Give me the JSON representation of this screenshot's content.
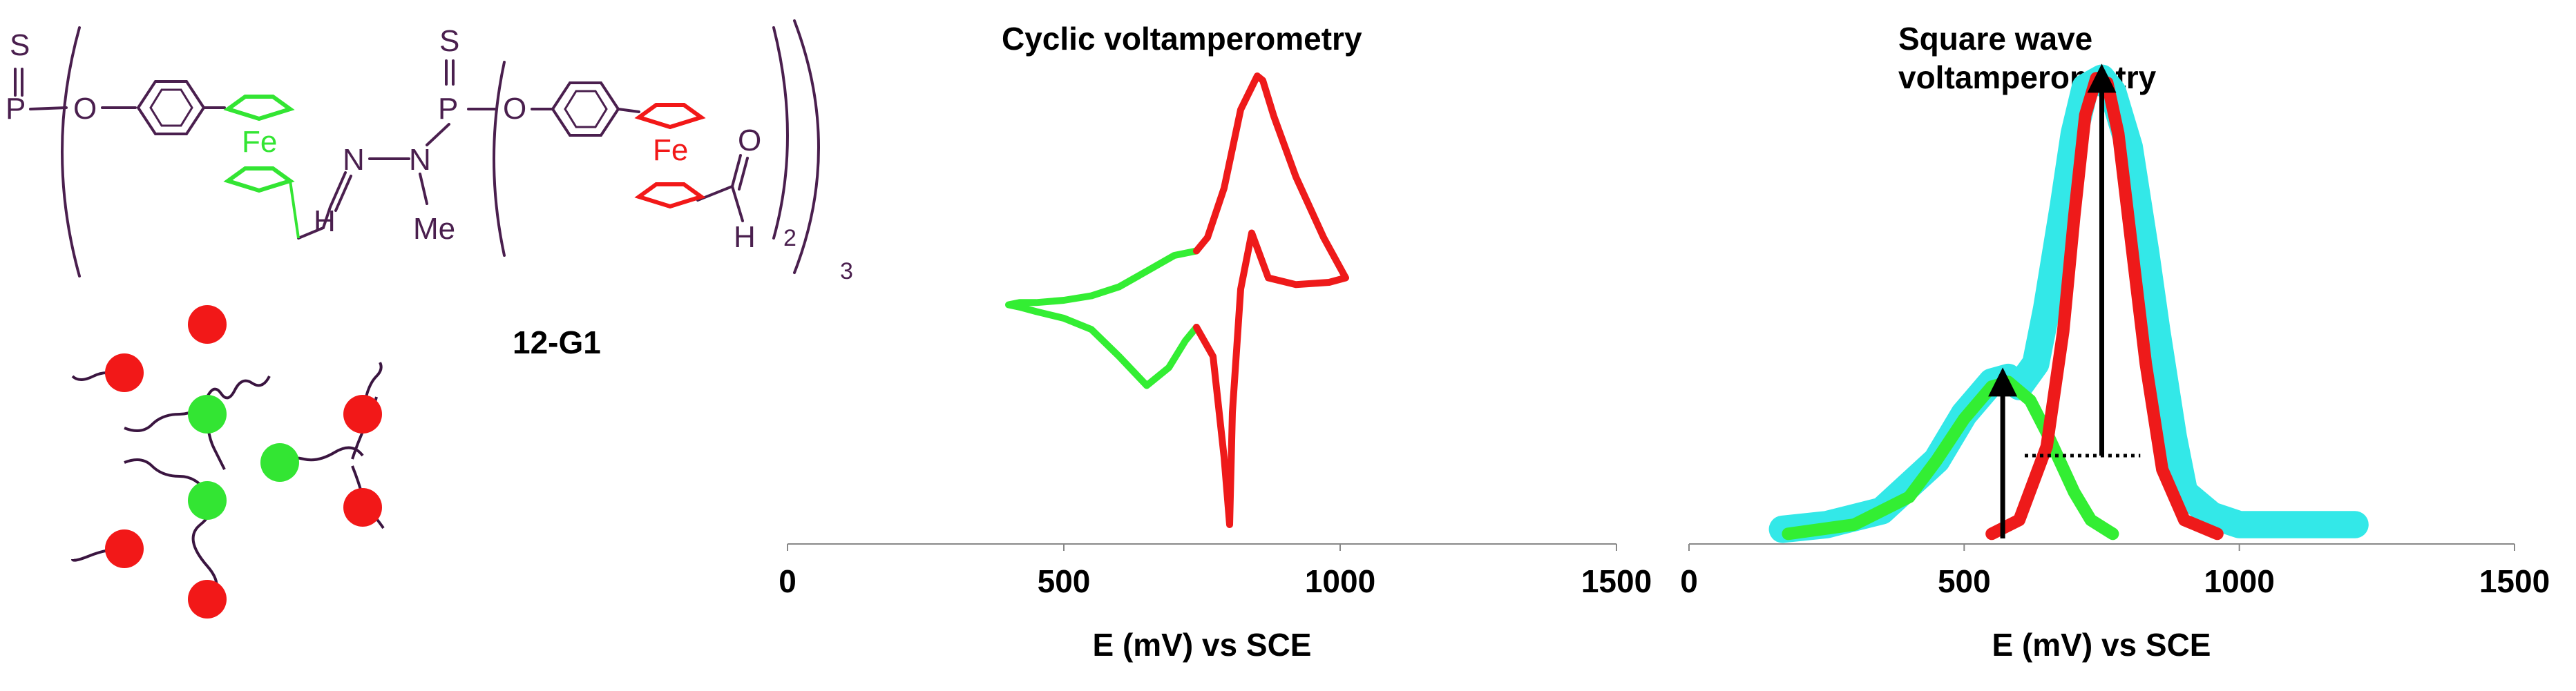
{
  "structure": {
    "compound_label": "12-G1",
    "atoms": {
      "s_top": "S",
      "p_left": "P",
      "o_left": "O",
      "fe_green": "Fe",
      "n_imine": "N",
      "n_amine": "N",
      "h_imine": "H",
      "me": "Me",
      "s_right": "S",
      "p_right": "P",
      "o_right": "O",
      "fe_red": "Fe",
      "o_ald": "O",
      "h_ald": "H",
      "sub2": "2",
      "sub3": "3"
    },
    "colors": {
      "bond": "#4a1f4e",
      "green": "#33e533",
      "red": "#f21818"
    },
    "cartoon_nodes": [
      {
        "name": "center",
        "color": "green"
      },
      {
        "name": "upper-branch",
        "color": "green"
      },
      {
        "name": "lower-branch",
        "color": "green"
      },
      {
        "name": "upper-left-end",
        "color": "red"
      },
      {
        "name": "upper-top-end",
        "color": "red"
      },
      {
        "name": "right-upper-end",
        "color": "red"
      },
      {
        "name": "right-lower-end",
        "color": "red"
      },
      {
        "name": "lower-left-end",
        "color": "red"
      },
      {
        "name": "lower-bottom-end",
        "color": "red"
      }
    ]
  },
  "chart_data": [
    {
      "type": "line",
      "title": "Cyclic voltamperometry",
      "xlabel": "E (mV) vs SCE",
      "ylabel": "",
      "xlim": [
        0,
        1500
      ],
      "ylim": [
        -1,
        1
      ],
      "x_ticks": [
        0,
        500,
        1000,
        1500
      ],
      "grid": false,
      "series": [
        {
          "name": "green-ferrocene",
          "color": "#33ee33",
          "x": [
            740,
            700,
            650,
            600,
            550,
            500,
            450,
            420,
            400,
            420,
            450,
            500,
            550,
            600,
            650,
            690,
            720,
            740
          ],
          "y": [
            0.22,
            0.2,
            0.13,
            0.06,
            0.02,
            0.0,
            -0.01,
            -0.01,
            -0.02,
            -0.03,
            -0.05,
            -0.08,
            -0.13,
            -0.25,
            -0.38,
            -0.3,
            -0.18,
            -0.12
          ]
        },
        {
          "name": "red-ferrocene",
          "color": "#ee1a1a",
          "x": [
            740,
            760,
            790,
            820,
            850,
            860,
            880,
            920,
            970,
            1010,
            980,
            920,
            870,
            840,
            820,
            805,
            800,
            790,
            770,
            740
          ],
          "y": [
            0.22,
            0.28,
            0.5,
            0.85,
            1.0,
            0.98,
            0.82,
            0.55,
            0.28,
            0.1,
            0.08,
            0.07,
            0.1,
            0.3,
            0.05,
            -0.5,
            -1.0,
            -0.7,
            -0.25,
            -0.12
          ]
        }
      ]
    },
    {
      "type": "line",
      "title": "Square wave voltamperometry",
      "xlabel": "E (mV) vs SCE",
      "ylabel": "",
      "xlim": [
        0,
        1500
      ],
      "ylim": [
        0,
        1.05
      ],
      "x_ticks": [
        0,
        500,
        1000,
        1500
      ],
      "grid": false,
      "series": [
        {
          "name": "total-experimental",
          "color": "#33e8e8",
          "x": [
            170,
            250,
            350,
            450,
            500,
            550,
            580,
            600,
            630,
            650,
            680,
            700,
            720,
            750,
            770,
            800,
            830,
            850,
            880,
            900,
            950,
            1000,
            1100,
            1210
          ],
          "y": [
            0.02,
            0.03,
            0.06,
            0.17,
            0.27,
            0.34,
            0.35,
            0.33,
            0.38,
            0.5,
            0.72,
            0.88,
            0.98,
            1.0,
            0.97,
            0.85,
            0.62,
            0.45,
            0.22,
            0.1,
            0.05,
            0.03,
            0.03,
            0.03
          ]
        },
        {
          "name": "green-deconvoluted",
          "color": "#33ee33",
          "x": [
            180,
            300,
            400,
            450,
            500,
            550,
            580,
            620,
            650,
            700,
            730,
            770
          ],
          "y": [
            0.01,
            0.03,
            0.09,
            0.17,
            0.26,
            0.33,
            0.34,
            0.3,
            0.23,
            0.1,
            0.04,
            0.01
          ]
        },
        {
          "name": "red-deconvoluted",
          "color": "#ee1a1a",
          "x": [
            550,
            600,
            650,
            680,
            700,
            720,
            740,
            760,
            780,
            800,
            830,
            860,
            900,
            960
          ],
          "y": [
            0.01,
            0.04,
            0.2,
            0.45,
            0.7,
            0.92,
            1.0,
            0.99,
            0.88,
            0.68,
            0.38,
            0.15,
            0.04,
            0.01
          ]
        }
      ],
      "annotations": [
        {
          "type": "arrow",
          "x": 570,
          "y_from": 0,
          "y_to": 0.34,
          "color": "#000000"
        },
        {
          "type": "arrow",
          "x": 750,
          "y_from": 0.18,
          "y_to": 1.0,
          "color": "#000000"
        },
        {
          "type": "dotted-line",
          "x_from": 610,
          "x_to": 820,
          "y": 0.18,
          "color": "#000000"
        }
      ]
    }
  ]
}
